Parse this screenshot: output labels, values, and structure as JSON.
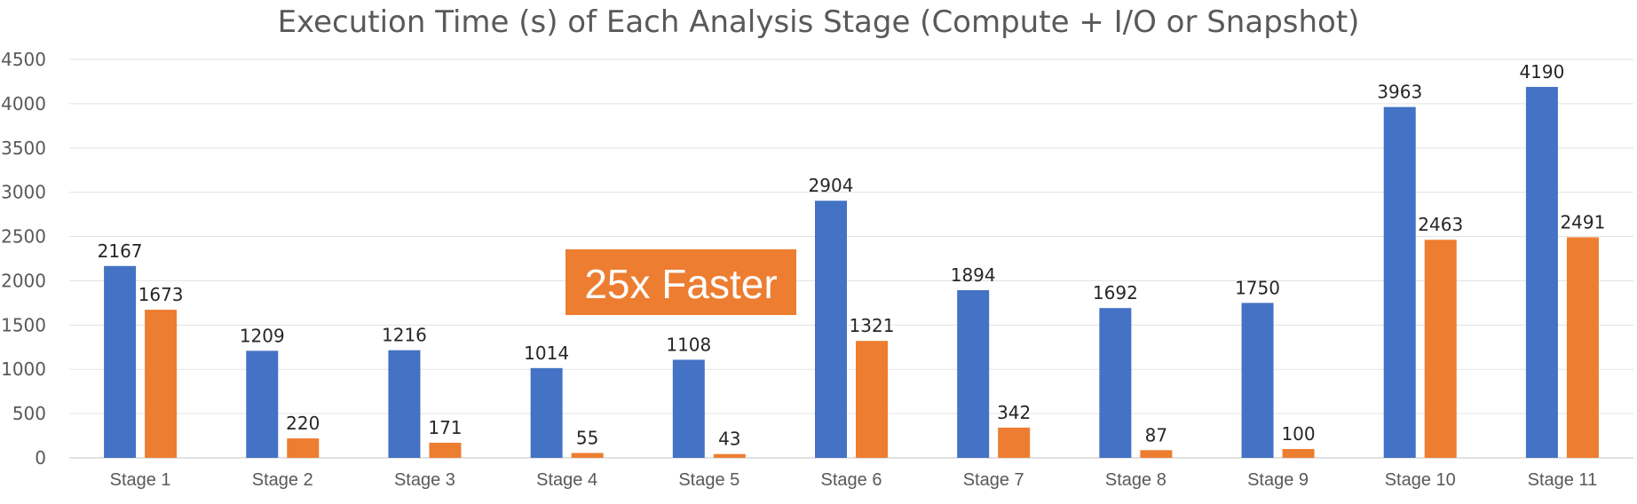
{
  "chart_data": {
    "type": "bar",
    "title": "Execution Time (s) of Each Analysis Stage (Compute + I/O or Snapshot)",
    "xlabel": "",
    "ylabel": "",
    "ylim": [
      0,
      4500
    ],
    "yticks": [
      "0",
      "500",
      "1000",
      "1500",
      "2000",
      "2500",
      "3000",
      "3500",
      "4000",
      "4500"
    ],
    "grid": true,
    "legend": "none",
    "categories": [
      "Stage 1",
      "Stage 2",
      "Stage 3",
      "Stage 4",
      "Stage 5",
      "Stage 6",
      "Stage 7",
      "Stage 8",
      "Stage 9",
      "Stage 10",
      "Stage 11"
    ],
    "series": [
      {
        "color": "#4472C4",
        "values": [
          2167,
          1209,
          1216,
          1014,
          1108,
          2904,
          1894,
          1692,
          1750,
          3963,
          4190
        ]
      },
      {
        "color": "#ED7D31",
        "values": [
          1673,
          220,
          171,
          55,
          43,
          1321,
          342,
          87,
          100,
          2463,
          2491
        ]
      }
    ],
    "annotations": [
      {
        "text": "25x Faster",
        "color": "#ED7D31"
      }
    ]
  }
}
